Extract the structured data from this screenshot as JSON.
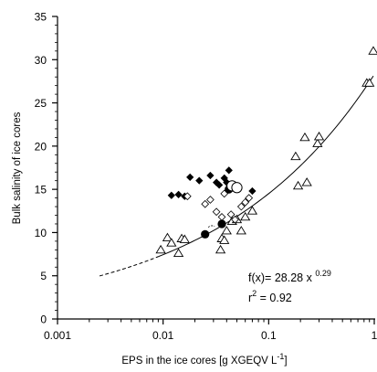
{
  "chart_data": {
    "type": "scatter",
    "title": "",
    "xlabel": "EPS in the ice cores",
    "xunit_open": " [g XGEQV L",
    "xunit_sup": "-1",
    "xunit_close": "]",
    "ylabel": "Bulk salinity of ice cores",
    "xscale": "log",
    "xlim": [
      0.001,
      1
    ],
    "ylim": [
      0,
      35
    ],
    "x_ticks": [
      0.001,
      0.01,
      0.1,
      1
    ],
    "x_tick_labels": [
      "0.001",
      "0.01",
      "0.1",
      "1"
    ],
    "y_ticks": [
      0,
      5,
      10,
      15,
      20,
      25,
      30,
      35
    ],
    "y_tick_labels": [
      "0",
      "5",
      "10",
      "15",
      "20",
      "25",
      "30",
      "35"
    ],
    "grid": false,
    "series": [
      {
        "marker": "open-triangle",
        "points": [
          [
            0.0095,
            8.0
          ],
          [
            0.011,
            9.4
          ],
          [
            0.012,
            8.8
          ],
          [
            0.014,
            7.6
          ],
          [
            0.015,
            9.3
          ],
          [
            0.016,
            9.2
          ],
          [
            0.035,
            8.0
          ],
          [
            0.036,
            9.3
          ],
          [
            0.038,
            9.1
          ],
          [
            0.04,
            10.2
          ],
          [
            0.045,
            11.3
          ],
          [
            0.05,
            11.5
          ],
          [
            0.055,
            10.2
          ],
          [
            0.06,
            11.8
          ],
          [
            0.07,
            12.5
          ],
          [
            0.18,
            18.8
          ],
          [
            0.19,
            15.4
          ],
          [
            0.22,
            21.0
          ],
          [
            0.23,
            15.8
          ],
          [
            0.29,
            20.3
          ],
          [
            0.3,
            21.1
          ],
          [
            0.85,
            27.3
          ],
          [
            0.9,
            27.3
          ],
          [
            0.98,
            31.0
          ]
        ]
      },
      {
        "marker": "filled-diamond",
        "points": [
          [
            0.012,
            14.3
          ],
          [
            0.014,
            14.4
          ],
          [
            0.016,
            14.2
          ],
          [
            0.018,
            16.4
          ],
          [
            0.022,
            16.0
          ],
          [
            0.028,
            16.6
          ],
          [
            0.032,
            15.8
          ],
          [
            0.034,
            15.5
          ],
          [
            0.038,
            16.3
          ],
          [
            0.04,
            15.8
          ],
          [
            0.042,
            17.2
          ],
          [
            0.065,
            14.0
          ],
          [
            0.07,
            14.8
          ]
        ]
      },
      {
        "marker": "open-diamond",
        "points": [
          [
            0.017,
            14.2
          ],
          [
            0.025,
            13.3
          ],
          [
            0.028,
            13.8
          ],
          [
            0.032,
            12.4
          ],
          [
            0.036,
            11.8
          ],
          [
            0.038,
            14.5
          ],
          [
            0.044,
            12.1
          ],
          [
            0.048,
            11.5
          ],
          [
            0.055,
            13.0
          ],
          [
            0.06,
            13.5
          ],
          [
            0.065,
            14.0
          ]
        ]
      },
      {
        "marker": "filled-circle",
        "points": [
          [
            0.025,
            9.8
          ],
          [
            0.036,
            11.0
          ],
          [
            0.042,
            15.0
          ]
        ]
      },
      {
        "marker": "open-circle",
        "points": [
          [
            0.045,
            15.4
          ],
          [
            0.05,
            15.2
          ]
        ]
      }
    ],
    "fit": {
      "coefficient": 28.28,
      "exponent": 0.29,
      "dashed_x": [
        0.0025,
        0.009
      ],
      "solid_x": [
        0.009,
        0.98
      ],
      "equation_prefix": "f(x)= 28.28 x ",
      "equation_exponent": "0.29",
      "r2_prefix": "r",
      "r2_exponent": "2",
      "r2_suffix": " = 0.92"
    },
    "stray_mark": {
      "x": 0.029,
      "y": 10.6
    }
  }
}
